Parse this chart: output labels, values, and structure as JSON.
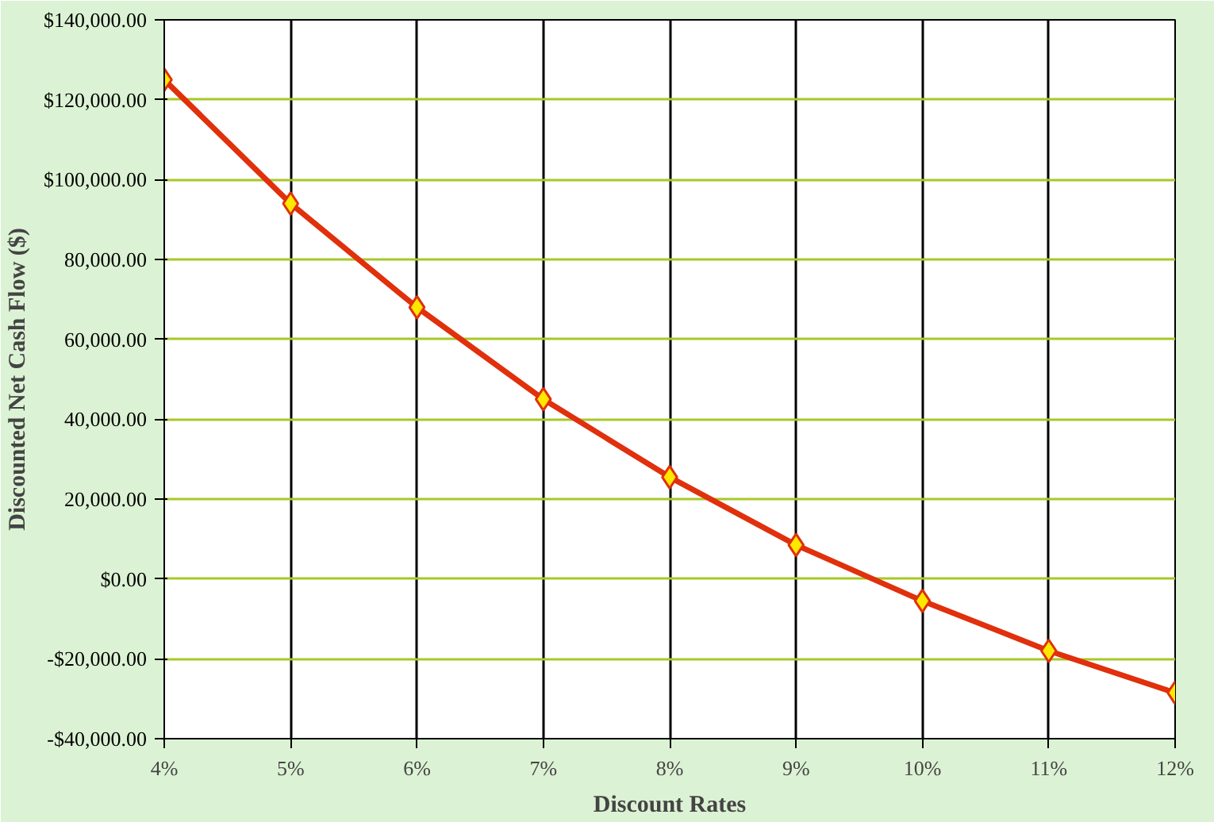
{
  "chart_data": {
    "type": "line",
    "xlabel": "Discount Rates",
    "ylabel": "Discounted Net Cash Flow ($)",
    "x": [
      4,
      5,
      6,
      7,
      8,
      9,
      10,
      11,
      12
    ],
    "series": [
      {
        "color": "#e0300c",
        "values": [
          125000,
          94000,
          68000,
          45000,
          25500,
          8500,
          -5500,
          -18000,
          -28500
        ]
      }
    ],
    "xlim": [
      4,
      12
    ],
    "ylim": [
      -40000,
      140000
    ],
    "xticks": [
      {
        "value": 4,
        "label": "4%"
      },
      {
        "value": 5,
        "label": "5%"
      },
      {
        "value": 6,
        "label": "6%"
      },
      {
        "value": 7,
        "label": "7%"
      },
      {
        "value": 8,
        "label": "8%"
      },
      {
        "value": 9,
        "label": "9%"
      },
      {
        "value": 10,
        "label": "10%"
      },
      {
        "value": 11,
        "label": "11%"
      },
      {
        "value": 12,
        "label": "12%"
      }
    ],
    "yticks": [
      {
        "value": -40000,
        "label": "-$40,000.00"
      },
      {
        "value": -20000,
        "label": "-$20,000.00"
      },
      {
        "value": 0,
        "label": "$0.00"
      },
      {
        "value": 20000,
        "label": "20,000.00"
      },
      {
        "value": 40000,
        "label": "40,000.00"
      },
      {
        "value": 60000,
        "label": "60,000.00"
      },
      {
        "value": 80000,
        "label": "80,000.00"
      },
      {
        "value": 100000,
        "label": "$100,000.00"
      },
      {
        "value": 120000,
        "label": "$120,000.00"
      },
      {
        "value": 140000,
        "label": "$140,000.00"
      }
    ],
    "grid": true,
    "marker": "diamond",
    "line_style": "solid"
  }
}
